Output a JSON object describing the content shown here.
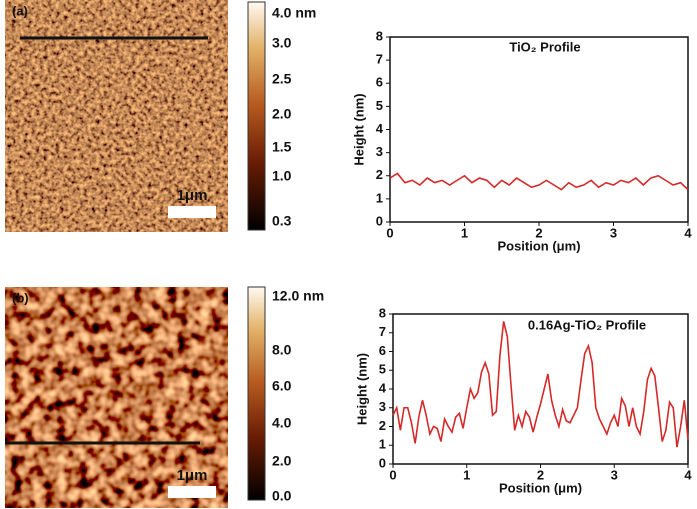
{
  "chart_data": [
    {
      "type": "line",
      "panel_label": "(a)",
      "scale_bar": "1μm",
      "colorbar": [
        "4.0 nm",
        "3.0",
        "2.5",
        "2.0",
        "1.5",
        "1.0",
        "0.3"
      ],
      "title": "TiO₂ Profile",
      "xlabel": "Position (μm)",
      "ylabel": "Height (nm)",
      "xlim": [
        0,
        4
      ],
      "ylim": [
        0,
        8
      ],
      "xticks": [
        0,
        1,
        2,
        3,
        4
      ],
      "yticks": [
        0,
        1,
        2,
        3,
        4,
        5,
        6,
        7,
        8
      ],
      "color": "#d42a2a",
      "x": [
        0,
        0.1,
        0.2,
        0.3,
        0.4,
        0.5,
        0.6,
        0.7,
        0.8,
        0.9,
        1,
        1.1,
        1.2,
        1.3,
        1.4,
        1.5,
        1.6,
        1.7,
        1.8,
        1.9,
        2,
        2.1,
        2.2,
        2.3,
        2.4,
        2.5,
        2.6,
        2.7,
        2.8,
        2.9,
        3,
        3.1,
        3.2,
        3.3,
        3.4,
        3.5,
        3.6,
        3.7,
        3.8,
        3.9,
        4
      ],
      "values": [
        1.9,
        2.1,
        1.7,
        1.8,
        1.6,
        1.9,
        1.7,
        1.8,
        1.6,
        1.8,
        2.0,
        1.7,
        1.9,
        1.8,
        1.5,
        1.8,
        1.6,
        1.9,
        1.7,
        1.5,
        1.6,
        1.8,
        1.6,
        1.4,
        1.7,
        1.5,
        1.6,
        1.8,
        1.5,
        1.7,
        1.6,
        1.8,
        1.7,
        1.9,
        1.6,
        1.9,
        2.0,
        1.8,
        1.6,
        1.7,
        1.4
      ]
    },
    {
      "type": "line",
      "panel_label": "(b)",
      "scale_bar": "1μm",
      "colorbar": [
        "12.0 nm",
        "8.0",
        "6.0",
        "4.0",
        "2.0",
        "0.0"
      ],
      "title": "0.16Ag-TiO₂ Profile",
      "xlabel": "Position (μm)",
      "ylabel": "Height (nm)",
      "xlim": [
        0,
        4
      ],
      "ylim": [
        0,
        8
      ],
      "xticks": [
        0,
        1,
        2,
        3,
        4
      ],
      "yticks": [
        0,
        1,
        2,
        3,
        4,
        5,
        6,
        7,
        8
      ],
      "color": "#d42a2a",
      "x": [
        0,
        0.05,
        0.1,
        0.15,
        0.2,
        0.25,
        0.3,
        0.35,
        0.4,
        0.45,
        0.5,
        0.55,
        0.6,
        0.65,
        0.7,
        0.75,
        0.8,
        0.85,
        0.9,
        0.95,
        1,
        1.05,
        1.1,
        1.15,
        1.2,
        1.25,
        1.3,
        1.35,
        1.4,
        1.45,
        1.5,
        1.55,
        1.6,
        1.65,
        1.7,
        1.75,
        1.8,
        1.85,
        1.9,
        1.95,
        2,
        2.05,
        2.1,
        2.15,
        2.2,
        2.25,
        2.3,
        2.35,
        2.4,
        2.45,
        2.5,
        2.55,
        2.6,
        2.65,
        2.7,
        2.75,
        2.8,
        2.85,
        2.9,
        2.95,
        3,
        3.05,
        3.1,
        3.15,
        3.2,
        3.25,
        3.3,
        3.35,
        3.4,
        3.45,
        3.5,
        3.55,
        3.6,
        3.65,
        3.7,
        3.75,
        3.8,
        3.85,
        3.9,
        3.95,
        4
      ],
      "values": [
        2.6,
        3.0,
        1.8,
        3.0,
        3.0,
        2.2,
        1.1,
        2.5,
        3.4,
        2.6,
        1.6,
        2.0,
        1.9,
        1.2,
        2.4,
        2.0,
        1.7,
        2.5,
        2.7,
        1.9,
        3.0,
        4.0,
        3.5,
        3.8,
        4.9,
        5.4,
        4.8,
        2.6,
        2.8,
        5.8,
        7.6,
        6.8,
        4.2,
        1.8,
        2.6,
        2.0,
        2.8,
        2.5,
        1.7,
        2.5,
        3.2,
        4.0,
        4.8,
        3.4,
        2.6,
        2.0,
        2.9,
        2.3,
        2.2,
        2.6,
        3.0,
        4.5,
        5.9,
        6.3,
        5.4,
        3.0,
        2.4,
        2.0,
        1.6,
        2.2,
        2.6,
        2.0,
        3.5,
        3.1,
        2.0,
        3.0,
        2.0,
        1.6,
        2.8,
        4.5,
        5.1,
        4.7,
        3.0,
        1.2,
        1.8,
        3.3,
        3.0,
        0.9,
        2.0,
        3.4,
        1.3
      ]
    }
  ]
}
